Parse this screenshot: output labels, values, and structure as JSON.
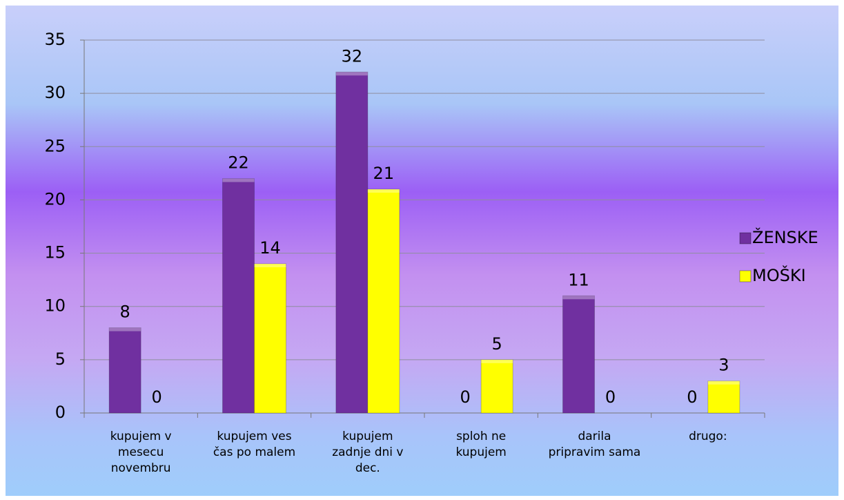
{
  "chart_data": {
    "type": "bar",
    "categories": [
      [
        "kupujem v",
        "mesecu",
        "novembru"
      ],
      [
        "kupujem ves",
        "čas po malem"
      ],
      [
        "kupujem",
        "zadnje dni v",
        "dec."
      ],
      [
        "sploh ne",
        "kupujem"
      ],
      [
        "darila",
        "pripravim sama"
      ],
      [
        "drugo:"
      ]
    ],
    "series": [
      {
        "name": "ŽENSKE",
        "color": "#7030a0",
        "values": [
          8,
          22,
          32,
          0,
          11,
          0
        ]
      },
      {
        "name": "MOŠKI",
        "color": "#ffff00",
        "values": [
          0,
          14,
          21,
          5,
          0,
          3
        ]
      }
    ],
    "ylim": [
      0,
      35
    ],
    "yticks": [
      0,
      5,
      10,
      15,
      20,
      25,
      30,
      35
    ],
    "grid": true,
    "legend": "right"
  }
}
